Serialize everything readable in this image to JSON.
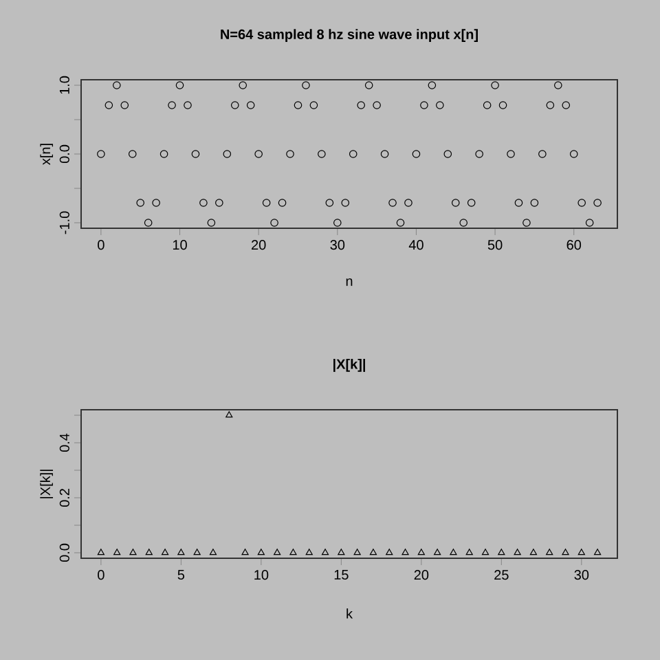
{
  "chart_data": [
    {
      "type": "scatter",
      "title": "N=64 sampled 8 hz sine wave input x[n]",
      "xlabel": "n",
      "ylabel": "x[n]",
      "marker": "circle",
      "x": [
        0,
        1,
        2,
        3,
        4,
        5,
        6,
        7,
        8,
        9,
        10,
        11,
        12,
        13,
        14,
        15,
        16,
        17,
        18,
        19,
        20,
        21,
        22,
        23,
        24,
        25,
        26,
        27,
        28,
        29,
        30,
        31,
        32,
        33,
        34,
        35,
        36,
        37,
        38,
        39,
        40,
        41,
        42,
        43,
        44,
        45,
        46,
        47,
        48,
        49,
        50,
        51,
        52,
        53,
        54,
        55,
        56,
        57,
        58,
        59,
        60,
        61,
        62,
        63
      ],
      "series": [
        {
          "color": "#000000",
          "values": [
            0,
            0.71,
            1,
            0.71,
            0,
            -0.71,
            -1,
            -0.71,
            0,
            0.71,
            1,
            0.71,
            0,
            -0.71,
            -1,
            -0.71,
            0,
            0.71,
            1,
            0.71,
            0,
            -0.71,
            -1,
            -0.71,
            0,
            0.71,
            1,
            0.71,
            0,
            -0.71,
            -1,
            -0.71,
            0,
            0.71,
            1,
            0.71,
            0,
            -0.71,
            -1,
            -0.71,
            0,
            0.71,
            1,
            0.71,
            0,
            -0.71,
            -1,
            -0.71,
            0,
            0.71,
            1,
            0.71,
            0,
            -0.71,
            -1,
            -0.71,
            0,
            0.71,
            1,
            0.71,
            0,
            -0.71,
            -1,
            -0.71
          ]
        }
      ],
      "xlim": [
        -2.52,
        65.52
      ],
      "ylim": [
        -1.08,
        1.08
      ],
      "xticks": [
        0,
        10,
        20,
        30,
        40,
        50,
        60
      ],
      "yticks": [
        {
          "value": -1,
          "label": "-1.0"
        },
        {
          "value": -0.5,
          "label": null
        },
        {
          "value": 0,
          "label": "0.0"
        },
        {
          "value": 0.5,
          "label": null
        },
        {
          "value": 1,
          "label": "1.0"
        }
      ]
    },
    {
      "type": "scatter",
      "title": "|X[k]|",
      "xlabel": "k",
      "ylabel": "|X[k]|",
      "marker": "triangle",
      "x": [
        0,
        1,
        2,
        3,
        4,
        5,
        6,
        7,
        8,
        9,
        10,
        11,
        12,
        13,
        14,
        15,
        16,
        17,
        18,
        19,
        20,
        21,
        22,
        23,
        24,
        25,
        26,
        27,
        28,
        29,
        30,
        31
      ],
      "series": [
        {
          "color": "#000000",
          "values": [
            0,
            0,
            0,
            0,
            0,
            0,
            0,
            0,
            0.5,
            0,
            0,
            0,
            0,
            0,
            0,
            0,
            0,
            0,
            0,
            0,
            0,
            0,
            0,
            0,
            0,
            0,
            0,
            0,
            0,
            0,
            0,
            0
          ]
        }
      ],
      "xlim": [
        -1.24,
        32.24
      ],
      "ylim": [
        -0.02,
        0.52
      ],
      "xticks": [
        0,
        5,
        10,
        15,
        20,
        25,
        30
      ],
      "yticks": [
        {
          "value": 0,
          "label": "0.0"
        },
        {
          "value": 0.1,
          "label": null
        },
        {
          "value": 0.2,
          "label": "0.2"
        },
        {
          "value": 0.3,
          "label": null
        },
        {
          "value": 0.4,
          "label": "0.4"
        },
        {
          "value": 0.5,
          "label": null
        }
      ]
    }
  ]
}
